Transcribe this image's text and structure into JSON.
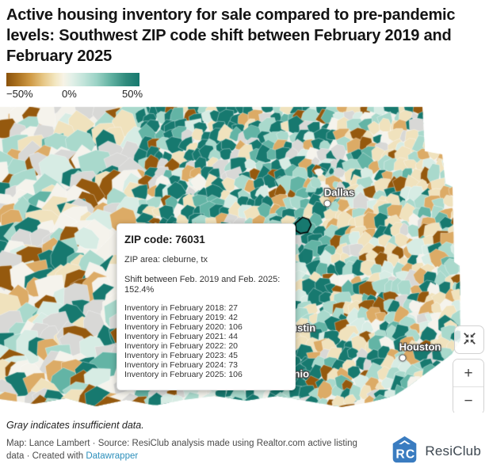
{
  "header": {
    "title": "Active housing inventory for sale compared to pre-pandemic levels: Southwest ZIP code shift between February 2019 and February 2025"
  },
  "legend": {
    "min_label": "−50%",
    "mid_label": "0%",
    "max_label": "50%",
    "gradient_ends": {
      "negative": "#8a520c",
      "zero": "#f7f3e6",
      "positive": "#17796f"
    }
  },
  "map": {
    "cities": [
      {
        "name": "Dallas"
      },
      {
        "name": "Austin"
      },
      {
        "name": "Houston"
      },
      {
        "name": "San Antonio"
      }
    ],
    "controls": {
      "zoom_in": "+",
      "zoom_out": "−"
    },
    "palette": [
      "#17796f",
      "#63b4a5",
      "#a9d9cc",
      "#d7ece4",
      "#f5f3ec",
      "#d8d8d6",
      "#f0e2bd",
      "#dcab66",
      "#95590e"
    ],
    "insufficient_data_color": "#d8d8d6"
  },
  "tooltip": {
    "title": "ZIP code: 76031",
    "area": "ZIP area: cleburne, tx",
    "shift": "Shift between Feb. 2019 and Feb. 2025: 152.4%",
    "inventory": [
      "Inventory in February 2018: 27",
      "Inventory in February 2019: 42",
      "Inventory in February 2020: 106",
      "Inventory in February 2021: 44",
      "Inventory in February 2022: 20",
      "Inventory in February 2023: 45",
      "Inventory in February 2024: 73",
      "Inventory in February 2025: 106"
    ]
  },
  "footer": {
    "gray_note": "Gray indicates insufficient data.",
    "credit_prefix": "Map: Lance Lambert · Source: ResiClub analysis made using Realtor.com active listing data · Created with ",
    "credit_link": "Datawrapper",
    "brand_name": "ResiClub"
  }
}
